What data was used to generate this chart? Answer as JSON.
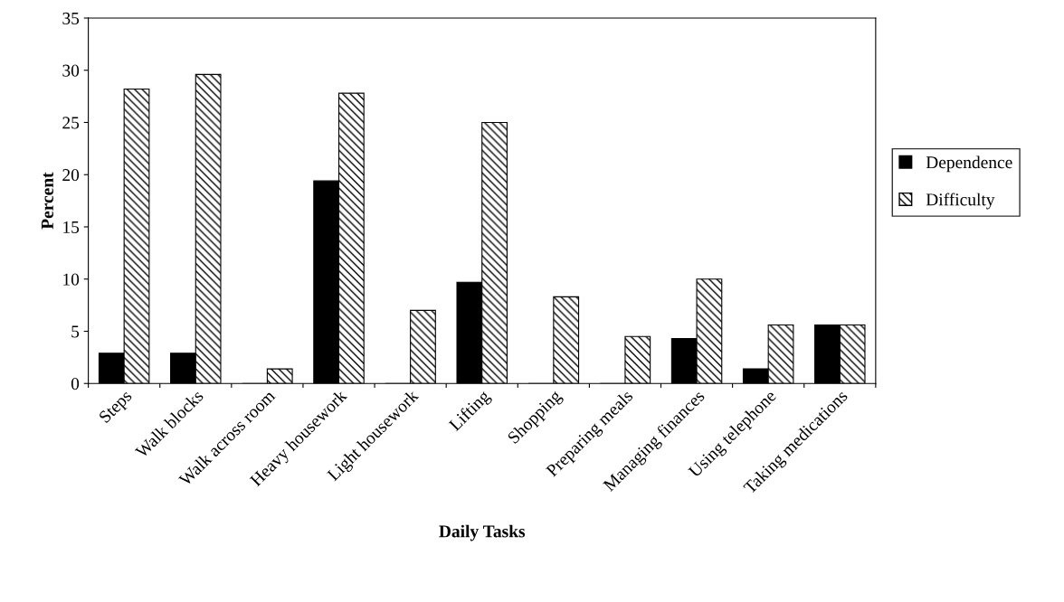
{
  "chart_data": {
    "type": "bar",
    "xlabel": "Daily Tasks",
    "ylabel": "Percent",
    "categories": [
      "Steps",
      "Walk blocks",
      "Walk across room",
      "Heavy housework",
      "Light housework",
      "Lifting",
      "Shopping",
      "Preparing meals",
      "Managing finances",
      "Using telephone",
      "Taking medications"
    ],
    "series": [
      {
        "name": "Dependence",
        "color": "#000000",
        "values": [
          2.9,
          2.9,
          0,
          19.4,
          0,
          9.7,
          0,
          0,
          4.3,
          1.4,
          5.6
        ]
      },
      {
        "name": "Difficulty",
        "color": "#000000",
        "values": [
          28.2,
          29.6,
          1.4,
          27.8,
          7.0,
          25.0,
          8.3,
          4.5,
          10.0,
          5.6,
          5.6
        ]
      }
    ],
    "ylim": [
      0,
      35
    ],
    "yticks": [
      0,
      5,
      10,
      15,
      20,
      25,
      30,
      35
    ],
    "grid": false,
    "legend": "right"
  }
}
